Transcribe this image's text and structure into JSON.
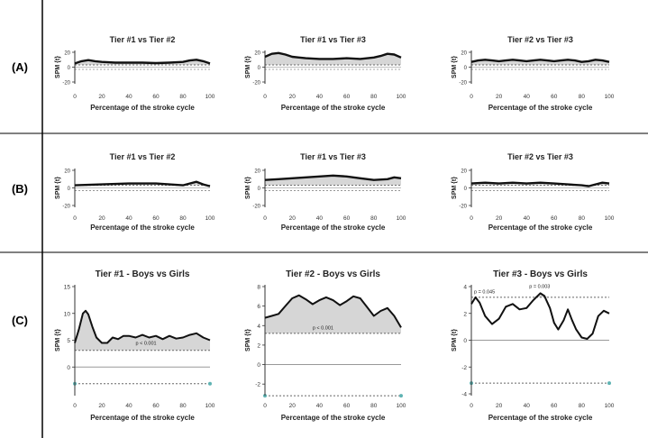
{
  "row_labels": [
    "(A)",
    "(B)",
    "(C)"
  ],
  "chart_data": [
    {
      "id": "a1",
      "row": 0,
      "col": 0,
      "type": "line",
      "title": "Tier #1 vs Tier #2",
      "xlabel": "Percentage of the stroke cycle",
      "ylabel": "SPM {t}",
      "xlim": [
        0,
        100
      ],
      "ylim": [
        -20,
        20
      ],
      "xticks": [
        0,
        20,
        40,
        60,
        80,
        100
      ],
      "yticks": [
        {
          "v": 20,
          "label": "20"
        },
        {
          "v": 0,
          "label": "0"
        },
        {
          "v": -20,
          "label": "-20"
        }
      ],
      "threshold": 3.0,
      "annotations": [],
      "series": [
        {
          "x": [
            0,
            5,
            10,
            15,
            20,
            30,
            40,
            50,
            60,
            70,
            80,
            85,
            90,
            95,
            100
          ],
          "y": [
            5,
            8,
            9.5,
            8,
            7,
            6,
            6,
            6,
            5.5,
            6,
            7,
            9,
            10,
            8,
            5
          ]
        }
      ]
    },
    {
      "id": "a2",
      "row": 0,
      "col": 1,
      "type": "line",
      "title": "Tier #1 vs Tier #3",
      "xlabel": "Percentage of the stroke cycle",
      "ylabel": "SPM {t}",
      "xlim": [
        0,
        100
      ],
      "ylim": [
        -20,
        20
      ],
      "xticks": [
        0,
        20,
        40,
        60,
        80,
        100
      ],
      "yticks": [
        {
          "v": 20,
          "label": "20"
        },
        {
          "v": 0,
          "label": "0"
        },
        {
          "v": -20,
          "label": "-20"
        }
      ],
      "threshold": 3.0,
      "annotations": [],
      "series": [
        {
          "x": [
            0,
            5,
            10,
            15,
            20,
            25,
            30,
            40,
            50,
            60,
            70,
            80,
            85,
            90,
            95,
            100
          ],
          "y": [
            14,
            18,
            19,
            17,
            14,
            13,
            12,
            11,
            11,
            12,
            11,
            13,
            15,
            18,
            17,
            13
          ]
        }
      ]
    },
    {
      "id": "a3",
      "row": 0,
      "col": 2,
      "type": "line",
      "title": "Tier #2 vs Tier #3",
      "xlabel": "Percentage of the stroke cycle",
      "ylabel": "SPM {t}",
      "xlim": [
        0,
        100
      ],
      "ylim": [
        -20,
        20
      ],
      "xticks": [
        0,
        20,
        40,
        60,
        80,
        100
      ],
      "yticks": [
        {
          "v": 20,
          "label": "20"
        },
        {
          "v": 0,
          "label": "0"
        },
        {
          "v": -20,
          "label": "-20"
        }
      ],
      "threshold": 3.0,
      "annotations": [],
      "series": [
        {
          "x": [
            0,
            5,
            10,
            15,
            20,
            25,
            30,
            35,
            40,
            45,
            50,
            55,
            60,
            65,
            70,
            75,
            80,
            85,
            90,
            95,
            100
          ],
          "y": [
            7,
            9,
            10,
            9,
            8,
            9,
            10,
            9,
            8,
            9,
            10,
            9,
            8,
            9,
            10,
            9,
            7,
            8,
            10,
            9,
            7
          ]
        }
      ]
    },
    {
      "id": "b1",
      "row": 1,
      "col": 0,
      "type": "line",
      "title": "Tier #1 vs Tier #2",
      "xlabel": "Percentage of the stroke cycle",
      "ylabel": "SPM {t}",
      "xlim": [
        0,
        100
      ],
      "ylim": [
        -20,
        20
      ],
      "xticks": [
        0,
        20,
        40,
        60,
        80,
        100
      ],
      "yticks": [
        {
          "v": 20,
          "label": "20"
        },
        {
          "v": 0,
          "label": "0"
        },
        {
          "v": -20,
          "label": "-20"
        }
      ],
      "threshold": 3.0,
      "annotations": [],
      "series": [
        {
          "x": [
            0,
            10,
            20,
            30,
            40,
            50,
            60,
            70,
            80,
            85,
            90,
            95,
            100
          ],
          "y": [
            3,
            3.5,
            4,
            4.5,
            5,
            5,
            5,
            4,
            3,
            5,
            7,
            4,
            2
          ]
        }
      ]
    },
    {
      "id": "b2",
      "row": 1,
      "col": 1,
      "type": "line",
      "title": "Tier #1 vs Tier #3",
      "xlabel": "Percentage of the stroke cycle",
      "ylabel": "SPM {t}",
      "xlim": [
        0,
        100
      ],
      "ylim": [
        -20,
        20
      ],
      "xticks": [
        0,
        20,
        40,
        60,
        80,
        100
      ],
      "yticks": [
        {
          "v": 20,
          "label": "20"
        },
        {
          "v": 0,
          "label": "0"
        },
        {
          "v": -20,
          "label": "-20"
        }
      ],
      "threshold": 3.0,
      "annotations": [],
      "series": [
        {
          "x": [
            0,
            10,
            20,
            30,
            40,
            50,
            60,
            70,
            80,
            90,
            95,
            100
          ],
          "y": [
            9,
            10,
            11,
            12,
            13,
            14,
            13,
            11,
            9,
            10,
            12,
            11
          ]
        }
      ]
    },
    {
      "id": "b3",
      "row": 1,
      "col": 2,
      "type": "line",
      "title": "Tier #2 vs Tier #3",
      "xlabel": "Percentage of the stroke cycle",
      "ylabel": "SPM {t}",
      "xlim": [
        0,
        100
      ],
      "ylim": [
        -20,
        20
      ],
      "xticks": [
        0,
        20,
        40,
        60,
        80,
        100
      ],
      "yticks": [
        {
          "v": 20,
          "label": "20"
        },
        {
          "v": 0,
          "label": "0"
        },
        {
          "v": -20,
          "label": "-20"
        }
      ],
      "threshold": 3.0,
      "annotations": [],
      "series": [
        {
          "x": [
            0,
            10,
            20,
            30,
            40,
            50,
            60,
            70,
            80,
            85,
            90,
            95,
            100
          ],
          "y": [
            5,
            6,
            5,
            6,
            5,
            6,
            5,
            4,
            3,
            2,
            4,
            6,
            5
          ]
        }
      ]
    },
    {
      "id": "c1",
      "row": 2,
      "col": 0,
      "type": "line",
      "title": "Tier #1 - Boys vs Girls",
      "xlabel": "Percentage of the stroke cycle",
      "ylabel": "SPM {t}",
      "xlim": [
        0,
        100
      ],
      "ylim": [
        -5,
        15
      ],
      "xticks": [
        0,
        20,
        40,
        60,
        80,
        100
      ],
      "yticks": [
        {
          "v": 15,
          "label": "15"
        },
        {
          "v": 10,
          "label": "10"
        },
        {
          "v": 5,
          "label": "5"
        },
        {
          "v": 0,
          "label": "0"
        }
      ],
      "threshold": 3.1,
      "lower_threshold": -3.1,
      "zero_line": 0,
      "annotations": [
        {
          "x": 45,
          "y": 4.2,
          "text": "p < 0.001"
        }
      ],
      "series": [
        {
          "x": [
            0,
            3,
            6,
            8,
            10,
            13,
            16,
            20,
            24,
            28,
            32,
            36,
            40,
            45,
            50,
            55,
            60,
            65,
            70,
            75,
            80,
            85,
            90,
            95,
            100
          ],
          "y": [
            4.5,
            7,
            10,
            10.5,
            9.8,
            7.5,
            5.5,
            4.5,
            4.5,
            5.5,
            5.2,
            5.8,
            5.8,
            5.5,
            6,
            5.5,
            5.8,
            5.2,
            5.8,
            5.3,
            5.5,
            6,
            6.3,
            5.5,
            5
          ]
        }
      ]
    },
    {
      "id": "c2",
      "row": 2,
      "col": 1,
      "type": "line",
      "title": "Tier #2 - Boys vs Girls",
      "xlabel": "Percentage of the stroke cycle",
      "ylabel": "SPM {t}",
      "xlim": [
        0,
        100
      ],
      "ylim": [
        -3,
        8
      ],
      "xticks": [
        0,
        20,
        40,
        60,
        80,
        100
      ],
      "yticks": [
        {
          "v": 8,
          "label": "8"
        },
        {
          "v": 6,
          "label": "6"
        },
        {
          "v": 4,
          "label": "4"
        },
        {
          "v": 2,
          "label": "2"
        },
        {
          "v": 0,
          "label": "0"
        },
        {
          "v": -2,
          "label": "-2"
        }
      ],
      "threshold": 3.2,
      "lower_threshold": -3.2,
      "zero_line": 0,
      "annotations": [
        {
          "x": 35,
          "y": 3.6,
          "text": "p < 0.001"
        }
      ],
      "series": [
        {
          "x": [
            0,
            5,
            10,
            15,
            20,
            25,
            30,
            35,
            40,
            45,
            50,
            55,
            60,
            65,
            70,
            75,
            80,
            85,
            90,
            95,
            100
          ],
          "y": [
            4.8,
            5,
            5.2,
            6,
            6.8,
            7.1,
            6.7,
            6.2,
            6.6,
            6.9,
            6.6,
            6.1,
            6.5,
            7,
            6.8,
            5.9,
            5,
            5.5,
            5.8,
            5,
            3.8
          ]
        }
      ]
    },
    {
      "id": "c3",
      "row": 2,
      "col": 2,
      "type": "line",
      "title": "Tier #3 - Boys vs Girls",
      "xlabel": "Percentage of the stroke cycle",
      "ylabel": "SPM {t}",
      "xlim": [
        0,
        100
      ],
      "ylim": [
        -4,
        4
      ],
      "xticks": [
        0,
        20,
        40,
        60,
        80,
        100
      ],
      "yticks": [
        {
          "v": 4,
          "label": "4"
        },
        {
          "v": 2,
          "label": "2"
        },
        {
          "v": 0,
          "label": "0"
        },
        {
          "v": -2,
          "label": "-2"
        },
        {
          "v": -4,
          "label": "-4"
        }
      ],
      "threshold": 3.2,
      "lower_threshold": -3.2,
      "zero_line": 0,
      "annotations": [
        {
          "x": 2,
          "y": 3.5,
          "text": "p = 0.045"
        },
        {
          "x": 42,
          "y": 3.9,
          "text": "p = 0.003"
        }
      ],
      "series": [
        {
          "x": [
            0,
            3,
            6,
            10,
            15,
            20,
            25,
            30,
            35,
            40,
            45,
            50,
            53,
            57,
            60,
            63,
            67,
            70,
            73,
            76,
            80,
            84,
            88,
            92,
            96,
            100
          ],
          "y": [
            2.7,
            3.2,
            2.8,
            1.8,
            1.2,
            1.6,
            2.5,
            2.7,
            2.3,
            2.4,
            3,
            3.5,
            3.3,
            2.4,
            1.3,
            0.8,
            1.5,
            2.3,
            1.5,
            0.8,
            0.2,
            0.1,
            0.5,
            1.8,
            2.2,
            2
          ]
        }
      ]
    }
  ]
}
